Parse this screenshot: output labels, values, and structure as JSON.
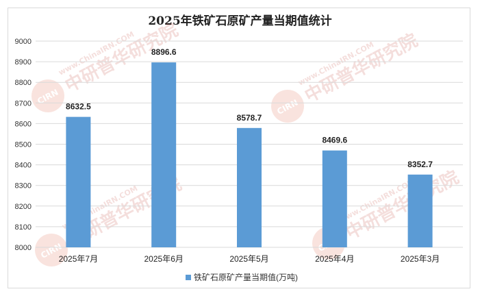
{
  "chart_data": {
    "type": "bar",
    "title": "2025年铁矿石原矿产量当期值统计",
    "categories": [
      "2025年7月",
      "2025年6月",
      "2025年5月",
      "2025年4月",
      "2025年3月"
    ],
    "series": [
      {
        "name": "铁矿石原矿产量当期值(万吨)",
        "values": [
          8632.5,
          8896.6,
          8578.7,
          8469.6,
          8352.7
        ],
        "data_labels": [
          "8632.5",
          "8896.6",
          "8578.7",
          "8469.6",
          "8352.7"
        ]
      }
    ],
    "ylim": [
      8000,
      9000
    ],
    "yticks": [
      "8000",
      "8100",
      "8200",
      "8300",
      "8400",
      "8500",
      "8600",
      "8700",
      "8800",
      "8900",
      "9000"
    ],
    "grid": true,
    "legend_position": "bottom",
    "bar_color": "#5b9bd5"
  },
  "watermark": {
    "logo_text": "CIRN",
    "cn_text": "中研普华研究院",
    "url_text": "www.ChinaIRN.COM"
  }
}
